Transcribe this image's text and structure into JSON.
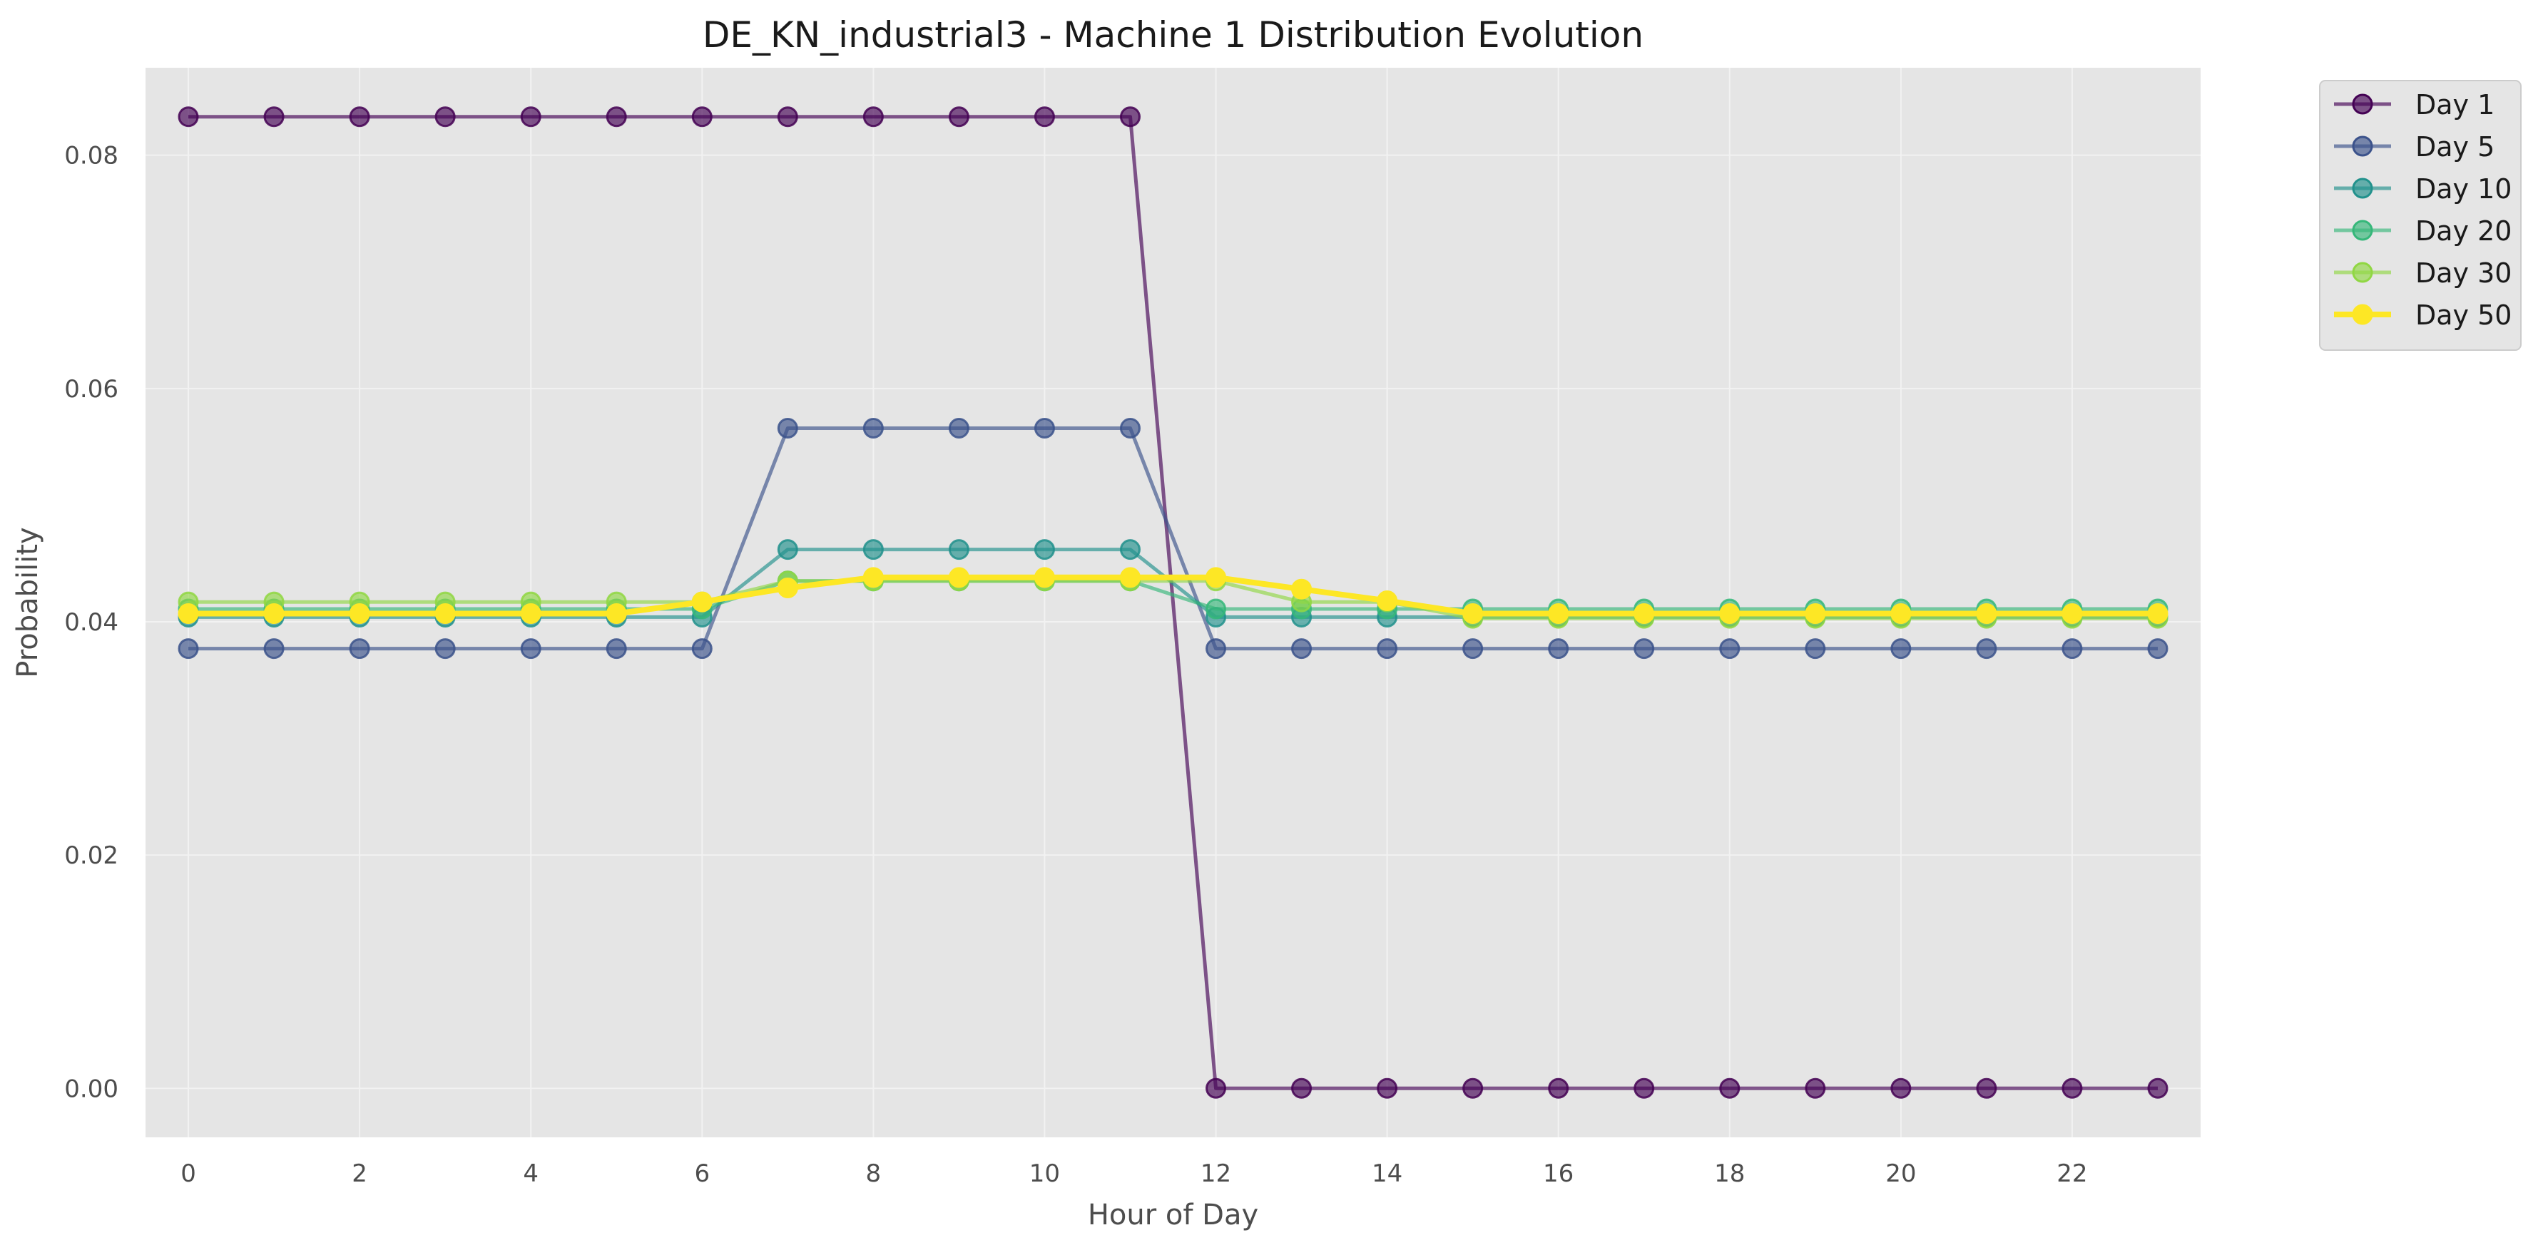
{
  "chart_data": {
    "type": "line",
    "title": "DE_KN_industrial3 - Machine 1 Distribution Evolution",
    "xlabel": "Hour of Day",
    "ylabel": "Probability",
    "xlim": [
      -0.5,
      23.5
    ],
    "ylim": [
      -0.0042,
      0.0875
    ],
    "x_ticks": [
      0,
      2,
      4,
      6,
      8,
      10,
      12,
      14,
      16,
      18,
      20,
      22
    ],
    "y_ticks": [
      0.0,
      0.02,
      0.04,
      0.06,
      0.08
    ],
    "y_tick_labels": [
      "0.00",
      "0.02",
      "0.04",
      "0.06",
      "0.08"
    ],
    "grid": true,
    "legend_position": "outside-top-right",
    "x": [
      0,
      1,
      2,
      3,
      4,
      5,
      6,
      7,
      8,
      9,
      10,
      11,
      12,
      13,
      14,
      15,
      16,
      17,
      18,
      19,
      20,
      21,
      22,
      23
    ],
    "series": [
      {
        "name": "Day 1",
        "color": "#440154",
        "values": [
          0.0833,
          0.0833,
          0.0833,
          0.0833,
          0.0833,
          0.0833,
          0.0833,
          0.0833,
          0.0833,
          0.0833,
          0.0833,
          0.0833,
          0.0,
          0.0,
          0.0,
          0.0,
          0.0,
          0.0,
          0.0,
          0.0,
          0.0,
          0.0,
          0.0,
          0.0
        ]
      },
      {
        "name": "Day 5",
        "color": "#3b528b",
        "values": [
          0.0377,
          0.0377,
          0.0377,
          0.0377,
          0.0377,
          0.0377,
          0.0377,
          0.0566,
          0.0566,
          0.0566,
          0.0566,
          0.0566,
          0.0377,
          0.0377,
          0.0377,
          0.0377,
          0.0377,
          0.0377,
          0.0377,
          0.0377,
          0.0377,
          0.0377,
          0.0377,
          0.0377
        ]
      },
      {
        "name": "Day 10",
        "color": "#21918c",
        "values": [
          0.0404,
          0.0404,
          0.0404,
          0.0404,
          0.0404,
          0.0404,
          0.0404,
          0.0462,
          0.0462,
          0.0462,
          0.0462,
          0.0462,
          0.0404,
          0.0404,
          0.0404,
          0.0404,
          0.0404,
          0.0404,
          0.0404,
          0.0404,
          0.0404,
          0.0404,
          0.0404,
          0.0404
        ]
      },
      {
        "name": "Day 20",
        "color": "#35b779",
        "values": [
          0.0411,
          0.0411,
          0.0411,
          0.0411,
          0.0411,
          0.0411,
          0.0411,
          0.0435,
          0.0435,
          0.0435,
          0.0435,
          0.0435,
          0.0411,
          0.0411,
          0.0411,
          0.0411,
          0.0411,
          0.0411,
          0.0411,
          0.0411,
          0.0411,
          0.0411,
          0.0411,
          0.0411
        ]
      },
      {
        "name": "Day 30",
        "color": "#90d743",
        "values": [
          0.0417,
          0.0417,
          0.0417,
          0.0417,
          0.0417,
          0.0417,
          0.0417,
          0.0435,
          0.0435,
          0.0435,
          0.0435,
          0.0435,
          0.0435,
          0.0417,
          0.0417,
          0.0403,
          0.0403,
          0.0403,
          0.0403,
          0.0403,
          0.0403,
          0.0403,
          0.0403,
          0.0403
        ]
      },
      {
        "name": "Day 50",
        "color": "#fde725",
        "values": [
          0.0407,
          0.0407,
          0.0407,
          0.0407,
          0.0407,
          0.0407,
          0.0417,
          0.0429,
          0.0438,
          0.0438,
          0.0438,
          0.0438,
          0.0438,
          0.0428,
          0.0418,
          0.0407,
          0.0407,
          0.0407,
          0.0407,
          0.0407,
          0.0407,
          0.0407,
          0.0407,
          0.0407
        ]
      }
    ]
  }
}
